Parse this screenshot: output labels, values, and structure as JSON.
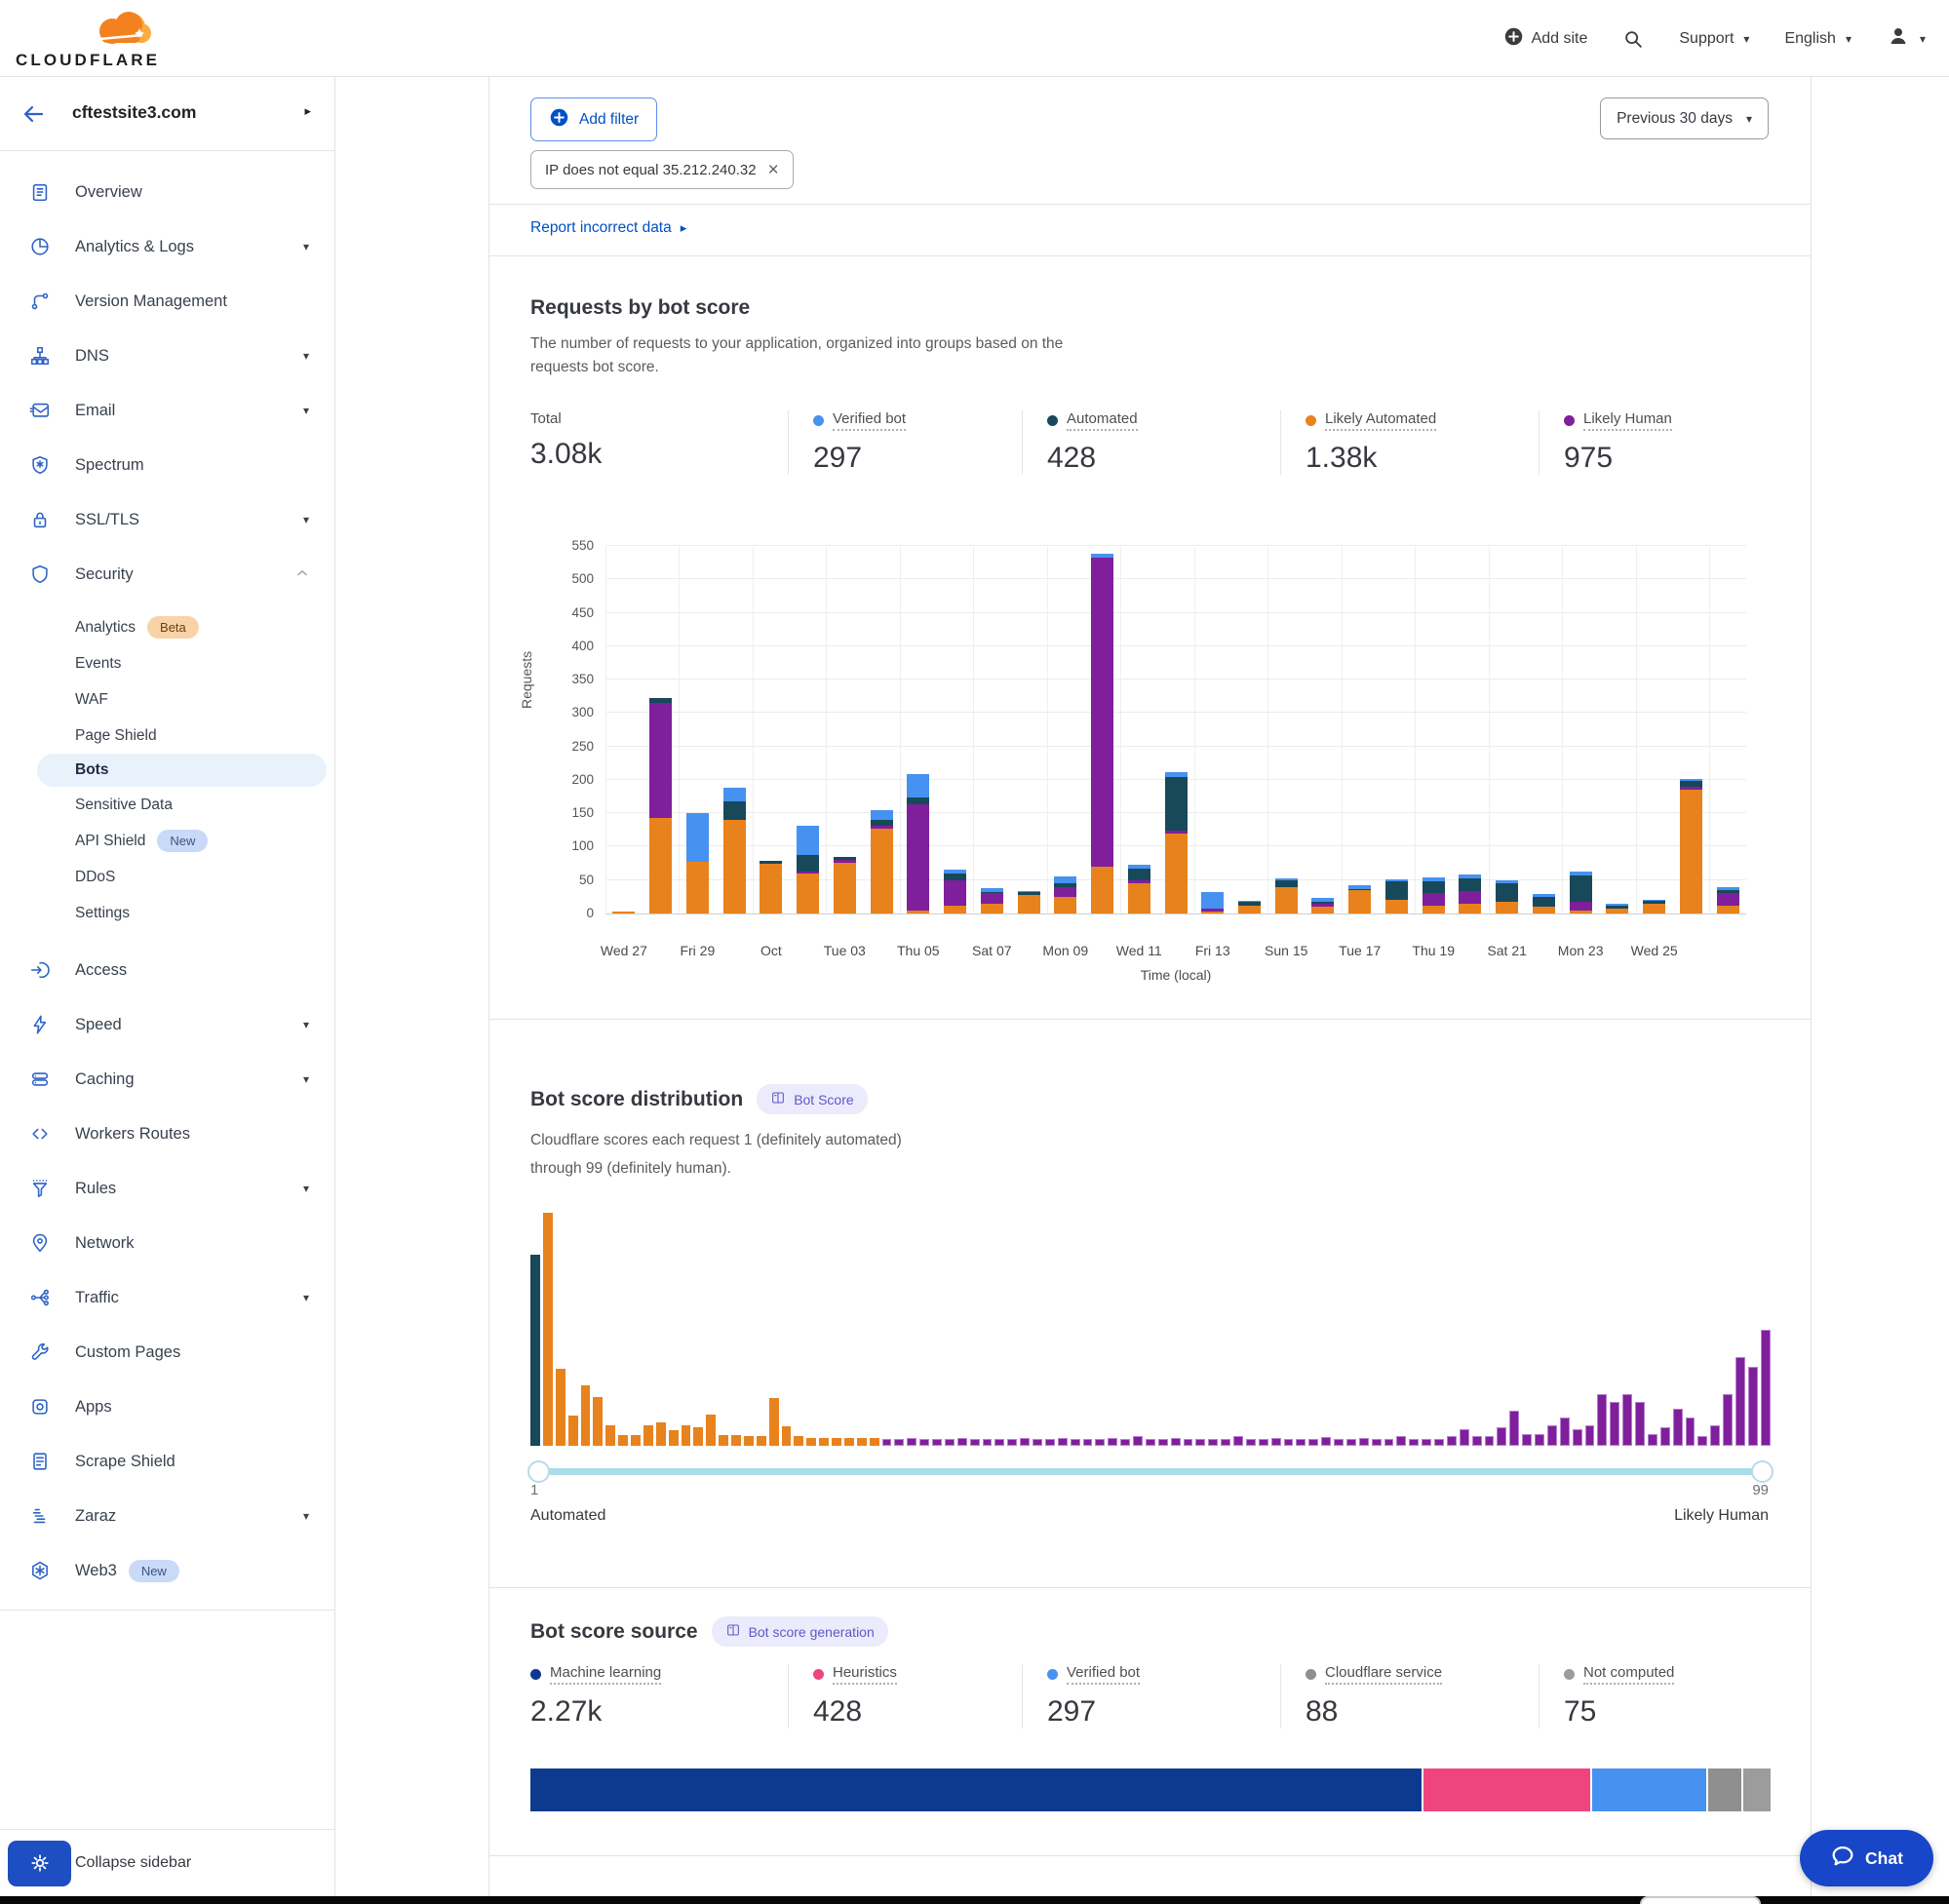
{
  "topbar": {
    "brand": "CLOUDFLARE",
    "add_site": "Add site",
    "support": "Support",
    "language": "English"
  },
  "sidebar": {
    "site": "cftestsite3.com",
    "items": [
      {
        "icon": "clipboard-icon",
        "label": "Overview"
      },
      {
        "icon": "pie-icon",
        "label": "Analytics & Logs",
        "caret": "down"
      },
      {
        "icon": "branch-icon",
        "label": "Version Management"
      },
      {
        "icon": "hierarchy-icon",
        "label": "DNS",
        "caret": "down"
      },
      {
        "icon": "mail-icon",
        "label": "Email",
        "caret": "down"
      },
      {
        "icon": "shield-star-icon",
        "label": "Spectrum"
      },
      {
        "icon": "lock-icon",
        "label": "SSL/TLS",
        "caret": "down"
      },
      {
        "icon": "shield-icon",
        "label": "Security",
        "caret": "up",
        "children": [
          {
            "label": "Analytics",
            "badge": "Beta"
          },
          {
            "label": "Events"
          },
          {
            "label": "WAF"
          },
          {
            "label": "Page Shield"
          },
          {
            "label": "Bots",
            "active": true
          },
          {
            "label": "Sensitive Data"
          },
          {
            "label": "API Shield",
            "badge": "New"
          },
          {
            "label": "DDoS"
          },
          {
            "label": "Settings"
          }
        ]
      },
      {
        "icon": "login-icon",
        "label": "Access"
      },
      {
        "icon": "bolt-icon",
        "label": "Speed",
        "caret": "down"
      },
      {
        "icon": "database-icon",
        "label": "Caching",
        "caret": "down"
      },
      {
        "icon": "code-icon",
        "label": "Workers Routes"
      },
      {
        "icon": "funnel-icon",
        "label": "Rules",
        "caret": "down"
      },
      {
        "icon": "pin-icon",
        "label": "Network"
      },
      {
        "icon": "share-icon",
        "label": "Traffic",
        "caret": "down"
      },
      {
        "icon": "wrench-icon",
        "label": "Custom Pages"
      },
      {
        "icon": "app-icon",
        "label": "Apps"
      },
      {
        "icon": "doc-icon",
        "label": "Scrape Shield"
      },
      {
        "icon": "zaraz-icon",
        "label": "Zaraz",
        "caret": "down"
      },
      {
        "icon": "web3-icon",
        "label": "Web3",
        "badge": "New"
      }
    ],
    "collapse_label": "Collapse sidebar"
  },
  "filters": {
    "add_filter_label": "Add filter",
    "chip": "IP does not equal 35.212.240.32",
    "range_label": "Previous 30 days"
  },
  "report_link": "Report incorrect data",
  "requests_card": {
    "title": "Requests by bot score",
    "description": "The number of requests to your application, organized into groups based on the requests bot score.",
    "stats": [
      {
        "label": "Total",
        "value": "3.08k",
        "color": null
      },
      {
        "label": "Verified bot",
        "value": "297",
        "color": "#4692f0"
      },
      {
        "label": "Automated",
        "value": "428",
        "color": "#17495a"
      },
      {
        "label": "Likely Automated",
        "value": "1.38k",
        "color": "#e8821d"
      },
      {
        "label": "Likely Human",
        "value": "975",
        "color": "#7f1f9c"
      }
    ]
  },
  "distribution_card": {
    "title": "Bot score distribution",
    "badge": "Bot Score",
    "description_line1": "Cloudflare scores each request 1 (definitely automated)",
    "description_line2": "through 99 (definitely human).",
    "slider_min": "1",
    "slider_max": "99",
    "min_label": "Automated",
    "max_label": "Likely Human"
  },
  "source_card": {
    "title": "Bot score source",
    "badge": "Bot score generation",
    "stats": [
      {
        "label": "Machine learning",
        "value": "2.27k",
        "color": "#0d3a8f"
      },
      {
        "label": "Heuristics",
        "value": "428",
        "color": "#ef457e"
      },
      {
        "label": "Verified bot",
        "value": "297",
        "color": "#4692f0"
      },
      {
        "label": "Cloudflare service",
        "value": "88",
        "color": "#8f8f8f"
      },
      {
        "label": "Not computed",
        "value": "75",
        "color": "#9c9c9c"
      }
    ]
  },
  "chat_label": "Chat",
  "chart_data": [
    {
      "type": "bar",
      "stacked": true,
      "title": "Requests by bot score",
      "xlabel": "Time (local)",
      "ylabel": "Requests",
      "ylim": [
        0,
        550
      ],
      "ytick_step": 50,
      "tick_labels": [
        "Wed 27",
        "Fri 29",
        "Oct",
        "Tue 03",
        "Thu 05",
        "Sat 07",
        "Mon 09",
        "Wed 11",
        "Fri 13",
        "Sun 15",
        "Tue 17",
        "Thu 19",
        "Sat 21",
        "Mon 23",
        "Wed 25"
      ],
      "tick_every_n_bars": 2,
      "series": [
        {
          "name": "Likely Automated",
          "color": "#e8821d",
          "values": [
            3,
            143,
            78,
            140,
            75,
            60,
            76,
            127,
            5,
            12,
            15,
            28,
            25,
            70,
            45,
            120,
            3,
            12,
            40,
            10,
            35,
            20,
            12,
            15,
            18,
            10,
            5,
            8,
            15,
            185,
            12
          ]
        },
        {
          "name": "Likely Human",
          "color": "#7f1f9c",
          "values": [
            0,
            172,
            0,
            0,
            0,
            3,
            4,
            4,
            158,
            38,
            15,
            0,
            15,
            462,
            4,
            4,
            4,
            0,
            0,
            4,
            0,
            0,
            18,
            18,
            0,
            0,
            12,
            0,
            0,
            5,
            18
          ]
        },
        {
          "name": "Automated",
          "color": "#17495a",
          "values": [
            0,
            7,
            0,
            28,
            4,
            24,
            4,
            9,
            10,
            10,
            2,
            4,
            5,
            0,
            18,
            80,
            0,
            5,
            10,
            4,
            2,
            28,
            18,
            20,
            27,
            15,
            40,
            4,
            4,
            8,
            5
          ]
        },
        {
          "name": "Verified bot",
          "color": "#4692f0",
          "values": [
            0,
            0,
            73,
            20,
            0,
            45,
            0,
            14,
            36,
            6,
            6,
            2,
            10,
            6,
            6,
            8,
            25,
            2,
            2,
            6,
            5,
            3,
            6,
            6,
            4,
            4,
            6,
            3,
            2,
            4,
            4
          ]
        }
      ]
    },
    {
      "type": "bar",
      "title": "Bot score distribution",
      "x_range": [
        1,
        99
      ],
      "note": "values are relative bar heights in percent of tallest bar; score 1 colored Automated teal, scores 2-28 Likely Automated orange, 29-99 Likely Human purple",
      "colors": {
        "automated": "#17495a",
        "likely_automated": "#e8821d",
        "likely_human": "#7f1f9c"
      },
      "values": [
        82,
        100,
        33,
        13,
        26,
        21,
        9,
        4.5,
        4.5,
        9,
        10,
        6.5,
        9,
        8,
        13.5,
        4.5,
        4.5,
        4,
        4,
        20.5,
        8.5,
        4,
        3.5,
        3.5,
        3.5,
        3.5,
        3.5,
        3.5,
        3,
        3,
        3.2,
        3,
        3,
        3,
        3.2,
        3,
        3,
        3,
        3,
        3.2,
        3,
        3,
        3.4,
        3,
        3,
        3,
        3.2,
        3,
        4,
        3,
        3,
        3.2,
        3,
        3,
        3,
        3,
        4.2,
        3,
        3,
        3.2,
        3,
        3,
        3,
        3.6,
        3,
        3,
        3.2,
        3,
        3,
        4,
        3,
        3,
        3,
        4,
        7,
        4,
        4,
        8,
        15,
        5,
        5,
        9,
        12,
        7,
        9,
        22,
        19,
        22,
        19,
        5,
        8,
        16,
        12,
        4,
        9,
        22,
        38,
        34,
        50
      ]
    },
    {
      "type": "bar",
      "stacked": true,
      "title": "Bot score source breakdown",
      "segments": [
        {
          "label": "Machine learning",
          "value": 2270,
          "color": "#0d3a8f"
        },
        {
          "label": "Heuristics",
          "value": 428,
          "color": "#ef457e"
        },
        {
          "label": "Verified bot",
          "value": 297,
          "color": "#4692f0"
        },
        {
          "label": "Cloudflare service",
          "value": 88,
          "color": "#8f8f8f"
        },
        {
          "label": "Not computed",
          "value": 75,
          "color": "#9c9c9c"
        }
      ]
    }
  ]
}
